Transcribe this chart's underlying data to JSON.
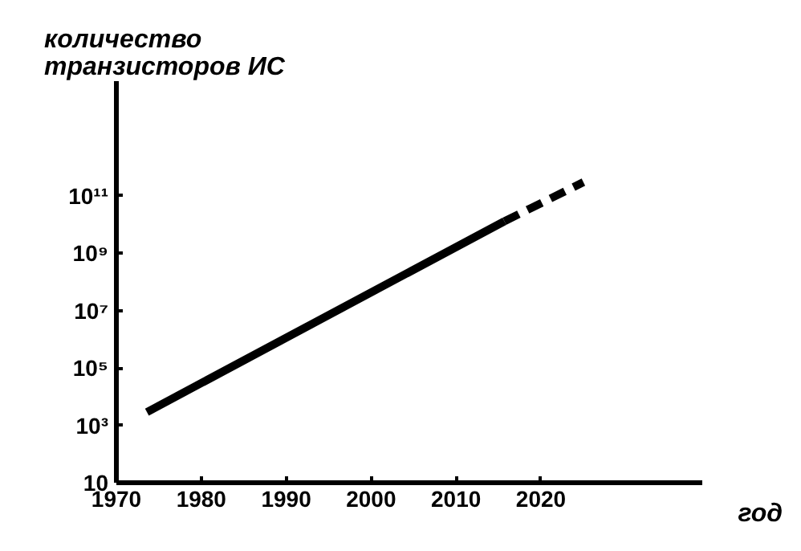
{
  "chart_data": {
    "type": "line",
    "xlabel": "год",
    "ylabel": "количество\nтранзисторов ИС",
    "log": "y",
    "grid": false,
    "marker": "none",
    "xlim": [
      1970,
      2039
    ],
    "ylim": [
      10,
      1000000000000000.0
    ],
    "xticks": [
      1970,
      1980,
      1990,
      2000,
      2010,
      2020
    ],
    "yticks": [
      10,
      {
        "value": 1000,
        "label": "10³"
      },
      {
        "value": 100000,
        "label": "10⁵"
      },
      {
        "value": 10000000,
        "label": "10⁷"
      },
      {
        "value": 1000000000,
        "label": "10⁹"
      },
      {
        "value": 100000000000,
        "label": "10¹¹"
      }
    ],
    "series": [
      {
        "color": "#000000",
        "line_style": "solid",
        "x": [
          1973.6,
          2015.7
        ],
        "values": [
          2900,
          13000000000
        ]
      },
      {
        "color": "#000000",
        "line_style": "dashed",
        "x": [
          2015.7,
          2025
        ],
        "values": [
          13000000000,
          300000000000
        ]
      }
    ]
  }
}
